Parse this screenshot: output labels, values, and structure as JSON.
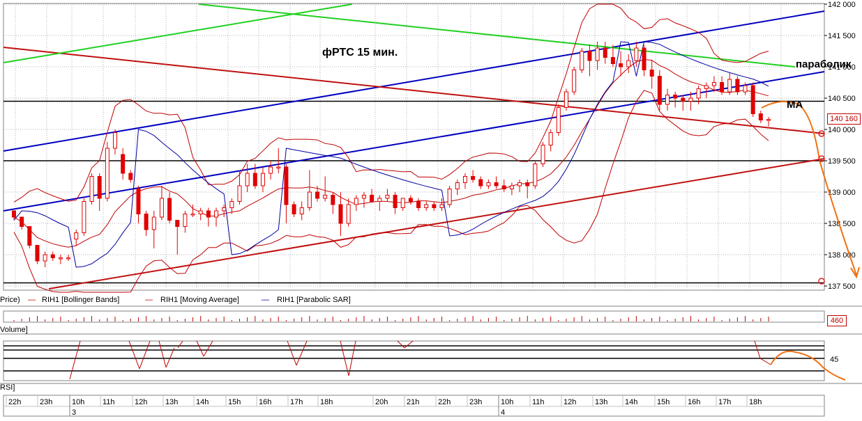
{
  "chart_data": {
    "type": "candlestick",
    "title": "фРТС   15 мин.",
    "y_ticks": [
      "142 000",
      "141 500",
      "141 000",
      "140 500",
      "140 000",
      "139 500",
      "139 000",
      "138 500",
      "138 000",
      "137 500"
    ],
    "y_tick_values": [
      142000,
      141500,
      141000,
      140500,
      140000,
      139500,
      139000,
      138500,
      138000,
      137500
    ],
    "ylim": [
      137400,
      142000
    ],
    "last_price": "140 160",
    "volume_last": "460",
    "rsi_level": "45",
    "legend": {
      "price": "Price)",
      "bollinger": "RIH1 [Bollinger Bands]",
      "ma": "RIH1 [Moving Average]",
      "sar": "RIH1 [Parabolic SAR]"
    },
    "panel_labels": {
      "volume": "Volume]",
      "rsi": "RSI]"
    },
    "annotations": {
      "parabolic": "параболик",
      "ma": "MA"
    },
    "time_labels": [
      "22h",
      "23h",
      "10h",
      "11h",
      "12h",
      "13h",
      "14h",
      "15h",
      "16h",
      "17h",
      "18h",
      "20h",
      "21h",
      "22h",
      "23h",
      "10h",
      "11h",
      "12h",
      "13h",
      "14h",
      "15h",
      "16h",
      "17h",
      "18h"
    ],
    "day_labels": [
      "3",
      "4"
    ],
    "colors": {
      "up": "#ffffff",
      "down": "#e00000",
      "bands": "#c00000",
      "sar": "#0000a0",
      "trend_blue": "#0000c0",
      "trend_red": "#c01010",
      "trend_green": "#20d020",
      "forecast": "#f07010"
    },
    "candles": [
      [
        138700,
        138700,
        138550,
        138600
      ],
      [
        138600,
        138600,
        138400,
        138450
      ],
      [
        138450,
        138450,
        138100,
        138150
      ],
      [
        138150,
        138150,
        137850,
        137900
      ],
      [
        137900,
        138050,
        137800,
        138000
      ],
      [
        138000,
        138050,
        137900,
        137950
      ],
      [
        137950,
        138000,
        137850,
        137950
      ],
      [
        137950,
        138000,
        137900,
        137950
      ],
      [
        138250,
        138400,
        138150,
        138350
      ],
      [
        138350,
        138900,
        138300,
        138850
      ],
      [
        138850,
        139300,
        138800,
        139250
      ],
      [
        139250,
        139300,
        138700,
        138900
      ],
      [
        138900,
        139800,
        138850,
        139700
      ],
      [
        139700,
        140000,
        139600,
        139950
      ],
      [
        139600,
        139700,
        139200,
        139300
      ],
      [
        139300,
        139350,
        139150,
        139200
      ],
      [
        139050,
        139100,
        138500,
        138650
      ],
      [
        138650,
        138700,
        138300,
        138400
      ],
      [
        138400,
        138700,
        138100,
        138600
      ],
      [
        138600,
        139100,
        138550,
        138900
      ],
      [
        138900,
        139000,
        138500,
        138550
      ],
      [
        138550,
        138550,
        138000,
        138450
      ],
      [
        138450,
        138700,
        138350,
        138650
      ],
      [
        138650,
        138800,
        138600,
        138650
      ],
      [
        138650,
        138750,
        138550,
        138700
      ],
      [
        138700,
        138750,
        138450,
        138600
      ],
      [
        138600,
        138750,
        138450,
        138700
      ],
      [
        138700,
        138800,
        138600,
        138750
      ],
      [
        138750,
        138900,
        138650,
        138850
      ],
      [
        138850,
        139350,
        138800,
        139100
      ],
      [
        139100,
        139450,
        139000,
        139300
      ],
      [
        139300,
        139450,
        139050,
        139100
      ],
      [
        139100,
        139400,
        139000,
        139300
      ],
      [
        139300,
        139500,
        139200,
        139400
      ],
      [
        139400,
        139700,
        139300,
        139400
      ],
      [
        139400,
        139450,
        138500,
        138800
      ],
      [
        138800,
        138850,
        138600,
        138650
      ],
      [
        138650,
        138850,
        138550,
        138750
      ],
      [
        138750,
        139350,
        138700,
        139000
      ],
      [
        139000,
        139100,
        138850,
        138900
      ],
      [
        138900,
        139250,
        138850,
        138950
      ],
      [
        138950,
        139000,
        138650,
        138800
      ],
      [
        138800,
        139000,
        138300,
        138500
      ],
      [
        138500,
        138900,
        138450,
        138800
      ],
      [
        138800,
        138950,
        138700,
        138900
      ],
      [
        138900,
        139000,
        138750,
        138950
      ],
      [
        138950,
        139050,
        138850,
        138850
      ],
      [
        138850,
        138950,
        138700,
        138900
      ],
      [
        138900,
        139050,
        138850,
        138950
      ],
      [
        138950,
        139000,
        138650,
        138750
      ],
      [
        138750,
        138900,
        138700,
        138900
      ],
      [
        138900,
        138950,
        138800,
        138850
      ],
      [
        138850,
        138900,
        138700,
        138750
      ],
      [
        138750,
        138850,
        138700,
        138800
      ],
      [
        138800,
        138850,
        138700,
        138750
      ],
      [
        138750,
        138900,
        138700,
        138800
      ],
      [
        138800,
        139100,
        138750,
        139050
      ],
      [
        139050,
        139200,
        138950,
        139150
      ],
      [
        139150,
        139300,
        139050,
        139250
      ],
      [
        139250,
        139350,
        139150,
        139200
      ],
      [
        139200,
        139250,
        139050,
        139100
      ],
      [
        139100,
        139200,
        139050,
        139150
      ],
      [
        139150,
        139250,
        139050,
        139100
      ],
      [
        139100,
        139200,
        139000,
        139050
      ],
      [
        139050,
        139150,
        138950,
        139100
      ],
      [
        139100,
        139200,
        139000,
        139150
      ],
      [
        139150,
        139200,
        138900,
        139100
      ],
      [
        139100,
        139500,
        139050,
        139450
      ],
      [
        139450,
        139800,
        139400,
        139750
      ],
      [
        139750,
        140000,
        139650,
        139950
      ],
      [
        139950,
        140400,
        139900,
        140350
      ],
      [
        140350,
        140650,
        140300,
        140600
      ],
      [
        140600,
        141000,
        140550,
        140950
      ],
      [
        140950,
        141300,
        140900,
        141250
      ],
      [
        141250,
        141350,
        140850,
        141100
      ],
      [
        141100,
        141400,
        140950,
        141300
      ],
      [
        141300,
        141400,
        141050,
        141150
      ],
      [
        141150,
        141350,
        141000,
        141050
      ],
      [
        141050,
        141250,
        140850,
        141000
      ],
      [
        141000,
        141200,
        140900,
        141100
      ],
      [
        141100,
        141400,
        141000,
        141300
      ],
      [
        141300,
        141350,
        140850,
        140950
      ],
      [
        140950,
        141100,
        140650,
        140850
      ],
      [
        140850,
        140950,
        140300,
        140400
      ],
      [
        140400,
        140650,
        140300,
        140550
      ],
      [
        140550,
        140600,
        140350,
        140500
      ],
      [
        140500,
        140550,
        140300,
        140450
      ],
      [
        140450,
        140600,
        140300,
        140500
      ],
      [
        140500,
        140700,
        140400,
        140650
      ],
      [
        140650,
        140750,
        140500,
        140700
      ],
      [
        140700,
        140850,
        140600,
        140750
      ],
      [
        140750,
        140850,
        140550,
        140600
      ],
      [
        140600,
        140900,
        140550,
        140800
      ],
      [
        140800,
        140850,
        140550,
        140600
      ],
      [
        140600,
        140750,
        140550,
        140700
      ],
      [
        140700,
        140750,
        140200,
        140250
      ],
      [
        140250,
        140300,
        140100,
        140150
      ],
      [
        140150,
        140200,
        140050,
        140160
      ]
    ]
  }
}
